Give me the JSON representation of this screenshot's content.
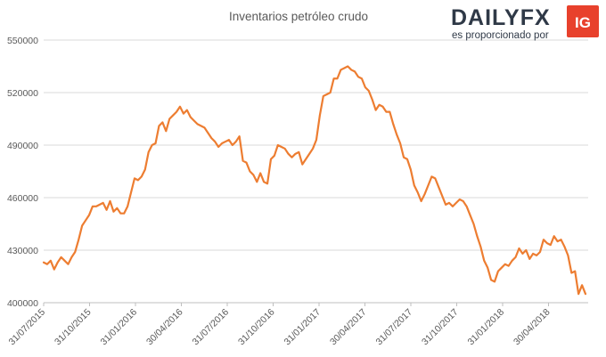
{
  "brand": {
    "name": "DAILYFX",
    "tagline": "es proporcionado por",
    "badge": "IG",
    "badge_color": "#e8412c",
    "name_color": "#2f3947"
  },
  "chart_data": {
    "type": "line",
    "title": "Inventarios petróleo crudo",
    "xlabel": "",
    "ylabel": "",
    "ylim": [
      400000,
      550000
    ],
    "yticks": [
      400000,
      430000,
      460000,
      490000,
      520000,
      550000
    ],
    "ytick_labels": [
      "400000",
      "430000",
      "460000",
      "490000",
      "520000",
      "550000"
    ],
    "xtick_labels": [
      "31/07/2015",
      "31/10/2015",
      "31/01/2016",
      "30/04/2016",
      "31/07/2016",
      "31/10/2016",
      "31/01/2017",
      "30/04/2017",
      "31/07/2017",
      "31/10/2017",
      "31/01/2018",
      "30/04/2018"
    ],
    "grid": true,
    "line_color": "#ed7d31",
    "series": [
      {
        "name": "Inventarios petróleo crudo",
        "values": [
          423000,
          422000,
          424000,
          419000,
          423000,
          426000,
          424000,
          422000,
          426000,
          429000,
          436000,
          444000,
          447000,
          450000,
          455000,
          455000,
          456000,
          457000,
          453000,
          458000,
          452000,
          454000,
          451000,
          451000,
          455000,
          463000,
          471000,
          470000,
          472000,
          476000,
          486000,
          490000,
          491000,
          501000,
          503000,
          498000,
          505000,
          507000,
          509000,
          512000,
          508000,
          510000,
          506000,
          504000,
          502000,
          501000,
          500000,
          497000,
          494000,
          492000,
          489000,
          491000,
          492000,
          493000,
          490000,
          492000,
          495000,
          481000,
          480000,
          475000,
          473000,
          469000,
          474000,
          469000,
          468000,
          482000,
          484000,
          490000,
          489000,
          488000,
          485000,
          483000,
          485000,
          486000,
          479000,
          482000,
          485000,
          488000,
          493000,
          507000,
          518000,
          519000,
          520000,
          528000,
          528000,
          533000,
          534000,
          535000,
          533000,
          532000,
          529000,
          528000,
          523000,
          521000,
          516000,
          510000,
          513000,
          512000,
          509000,
          509000,
          502000,
          496000,
          491000,
          483000,
          482000,
          476000,
          467000,
          463000,
          458000,
          462000,
          467000,
          472000,
          471000,
          466000,
          461000,
          456000,
          457000,
          455000,
          457000,
          459000,
          458000,
          455000,
          450000,
          445000,
          438000,
          432000,
          424000,
          420000,
          413000,
          412000,
          418000,
          420000,
          422000,
          421000,
          424000,
          426000,
          431000,
          428000,
          430000,
          425000,
          428000,
          427000,
          429000,
          436000,
          434000,
          433000,
          438000,
          435000,
          436000,
          432000,
          427000,
          417000,
          418000,
          405000,
          410000,
          405000
        ]
      }
    ]
  }
}
